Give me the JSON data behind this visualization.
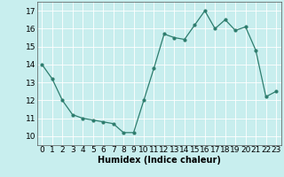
{
  "x": [
    0,
    1,
    2,
    3,
    4,
    5,
    6,
    7,
    8,
    9,
    10,
    11,
    12,
    13,
    14,
    15,
    16,
    17,
    18,
    19,
    20,
    21,
    22,
    23
  ],
  "y": [
    14.0,
    13.2,
    12.0,
    11.2,
    11.0,
    10.9,
    10.8,
    10.7,
    10.2,
    10.2,
    12.0,
    13.8,
    15.7,
    15.5,
    15.4,
    16.2,
    17.0,
    16.0,
    16.5,
    15.9,
    16.1,
    14.8,
    12.2,
    12.5
  ],
  "xlabel": "Humidex (Indice chaleur)",
  "ylim": [
    9.5,
    17.5
  ],
  "xlim": [
    -0.5,
    23.5
  ],
  "yticks": [
    10,
    11,
    12,
    13,
    14,
    15,
    16,
    17
  ],
  "xticks": [
    0,
    1,
    2,
    3,
    4,
    5,
    6,
    7,
    8,
    9,
    10,
    11,
    12,
    13,
    14,
    15,
    16,
    17,
    18,
    19,
    20,
    21,
    22,
    23
  ],
  "line_color": "#2e7d6e",
  "marker_color": "#2e7d6e",
  "bg_color": "#c8eeee",
  "grid_color": "#ffffff",
  "xlabel_fontsize": 7,
  "tick_fontsize": 6.5
}
